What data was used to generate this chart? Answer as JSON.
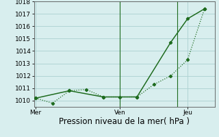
{
  "line1_x": [
    0,
    0.5,
    1,
    1.5,
    2,
    2.5,
    3,
    3.5,
    4,
    4.5,
    5
  ],
  "line1_y": [
    1010.2,
    1009.8,
    1010.8,
    1010.9,
    1010.3,
    1010.3,
    1010.3,
    1011.3,
    1012.0,
    1013.3,
    1017.4
  ],
  "line2_x": [
    0,
    1,
    2,
    3,
    4,
    4.5,
    5
  ],
  "line2_y": [
    1010.2,
    1010.8,
    1010.3,
    1010.3,
    1014.7,
    1016.6,
    1017.4
  ],
  "line_color": "#1e6b1e",
  "bg_color": "#d8eeee",
  "grid_color": "#b0d4d4",
  "xtick_positions": [
    0,
    2.5,
    4.5
  ],
  "xtick_labels": [
    "Mer",
    "Ven",
    "Jeu"
  ],
  "ytick_min": 1010,
  "ytick_max": 1018,
  "ytick_step": 1,
  "ylim_min": 1009.5,
  "ylim_max": 1018.0,
  "xlim_min": -0.05,
  "xlim_max": 5.3,
  "xlabel": "Pression niveau de la mer( hPa )",
  "xlabel_fontsize": 8.5,
  "tick_fontsize": 6.5,
  "vline_positions": [
    2.5,
    4.2
  ],
  "vline_color": "#1e6b1e"
}
